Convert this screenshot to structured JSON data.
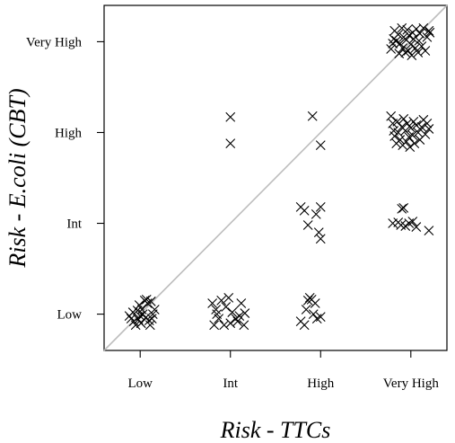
{
  "chart_data": {
    "type": "scatter",
    "title": "",
    "xlabel": "Risk - TTCs",
    "ylabel": "Risk - E.coli (CBT)",
    "categories": [
      "Low",
      "Int",
      "High",
      "Very High"
    ],
    "xlim": [
      0.6,
      4.4
    ],
    "ylim": [
      0.6,
      4.4
    ],
    "grid": false,
    "legend": "none",
    "reference_line": {
      "type": "diagonal",
      "from": [
        0.6,
        0.6
      ],
      "to": [
        4.4,
        4.4
      ],
      "color": "#bdbdbd"
    },
    "marker": "x",
    "colors": {
      "points": "#000000",
      "frame": "#000000",
      "diagonal": "#bdbdbd"
    },
    "points": [
      [
        0.88,
        0.98
      ],
      [
        0.9,
        0.95
      ],
      [
        0.92,
        1.02
      ],
      [
        0.93,
        0.92
      ],
      [
        0.95,
        0.88
      ],
      [
        0.97,
        1.04
      ],
      [
        0.98,
        0.94
      ],
      [
        0.99,
        1.1
      ],
      [
        1.0,
        0.98
      ],
      [
        1.01,
        0.9
      ],
      [
        1.02,
        1.05
      ],
      [
        1.03,
        1.0
      ],
      [
        1.05,
        1.15
      ],
      [
        1.06,
        0.96
      ],
      [
        1.07,
        1.16
      ],
      [
        1.08,
        1.12
      ],
      [
        1.1,
        0.93
      ],
      [
        1.11,
        0.88
      ],
      [
        1.12,
        1.14
      ],
      [
        1.13,
        0.95
      ],
      [
        1.14,
        1.0
      ],
      [
        1.16,
        1.05
      ],
      [
        1.8,
        1.12
      ],
      [
        1.82,
        0.88
      ],
      [
        1.84,
        1.05
      ],
      [
        1.85,
        1.0
      ],
      [
        1.87,
        0.95
      ],
      [
        1.9,
        1.15
      ],
      [
        1.93,
        0.88
      ],
      [
        1.95,
        1.08
      ],
      [
        1.98,
        1.18
      ],
      [
        2.0,
        0.9
      ],
      [
        2.02,
        1.02
      ],
      [
        2.06,
        0.95
      ],
      [
        2.08,
        0.92
      ],
      [
        2.1,
        0.98
      ],
      [
        2.12,
        1.12
      ],
      [
        2.15,
        0.88
      ],
      [
        2.16,
        1.01
      ],
      [
        2.0,
        3.17
      ],
      [
        2.0,
        2.88
      ],
      [
        2.78,
        0.92
      ],
      [
        2.82,
        0.88
      ],
      [
        2.84,
        1.05
      ],
      [
        2.86,
        1.15
      ],
      [
        2.88,
        1.18
      ],
      [
        2.9,
        1.16
      ],
      [
        2.92,
        1.0
      ],
      [
        2.94,
        1.12
      ],
      [
        2.96,
        0.95
      ],
      [
        3.0,
        0.97
      ],
      [
        2.78,
        2.18
      ],
      [
        2.82,
        2.14
      ],
      [
        2.86,
        1.98
      ],
      [
        2.95,
        2.1
      ],
      [
        2.98,
        1.9
      ],
      [
        3.0,
        2.18
      ],
      [
        3.0,
        1.83
      ],
      [
        2.91,
        3.18
      ],
      [
        3.0,
        2.86
      ],
      [
        3.78,
        3.92
      ],
      [
        3.8,
        3.98
      ],
      [
        3.81,
        4.03
      ],
      [
        3.82,
        4.12
      ],
      [
        3.84,
        4.01
      ],
      [
        3.86,
        4.08
      ],
      [
        3.87,
        3.87
      ],
      [
        3.88,
        3.98
      ],
      [
        3.9,
        4.15
      ],
      [
        3.91,
        3.93
      ],
      [
        3.92,
        4.05
      ],
      [
        3.94,
        3.88
      ],
      [
        3.95,
        4.02
      ],
      [
        3.96,
        4.13
      ],
      [
        3.97,
        3.9
      ],
      [
        3.98,
        4.07
      ],
      [
        4.0,
        3.97
      ],
      [
        4.01,
        3.85
      ],
      [
        4.02,
        4.1
      ],
      [
        4.03,
        4.03
      ],
      [
        4.05,
        3.93
      ],
      [
        4.06,
        4.14
      ],
      [
        4.08,
        3.88
      ],
      [
        4.09,
        4.01
      ],
      [
        4.1,
        4.09
      ],
      [
        4.12,
        3.95
      ],
      [
        4.14,
        4.15
      ],
      [
        4.16,
        3.9
      ],
      [
        4.18,
        4.05
      ],
      [
        4.2,
        4.12
      ],
      [
        4.21,
        4.1
      ],
      [
        3.78,
        3.18
      ],
      [
        3.8,
        3.1
      ],
      [
        3.81,
        3.02
      ],
      [
        3.82,
        2.96
      ],
      [
        3.84,
        2.88
      ],
      [
        3.85,
        3.12
      ],
      [
        3.86,
        3.0
      ],
      [
        3.88,
        2.92
      ],
      [
        3.9,
        3.06
      ],
      [
        3.91,
        2.86
      ],
      [
        3.92,
        3.15
      ],
      [
        3.94,
        3.02
      ],
      [
        3.95,
        2.9
      ],
      [
        3.96,
        3.1
      ],
      [
        3.98,
        2.95
      ],
      [
        3.99,
        2.84
      ],
      [
        4.0,
        3.05
      ],
      [
        4.02,
        2.97
      ],
      [
        4.03,
        3.12
      ],
      [
        4.04,
        2.88
      ],
      [
        4.06,
        3.08
      ],
      [
        4.08,
        3.0
      ],
      [
        4.1,
        2.92
      ],
      [
        4.12,
        3.06
      ],
      [
        4.14,
        3.14
      ],
      [
        4.16,
        2.98
      ],
      [
        4.18,
        3.1
      ],
      [
        4.2,
        3.04
      ],
      [
        3.8,
        2.0
      ],
      [
        3.86,
        2.01
      ],
      [
        3.9,
        2.16
      ],
      [
        3.92,
        2.17
      ],
      [
        3.94,
        1.97
      ],
      [
        3.98,
        2.0
      ],
      [
        4.02,
        2.02
      ],
      [
        4.06,
        1.96
      ],
      [
        4.2,
        1.92
      ],
      [
        3.89,
        1.98
      ]
    ]
  }
}
